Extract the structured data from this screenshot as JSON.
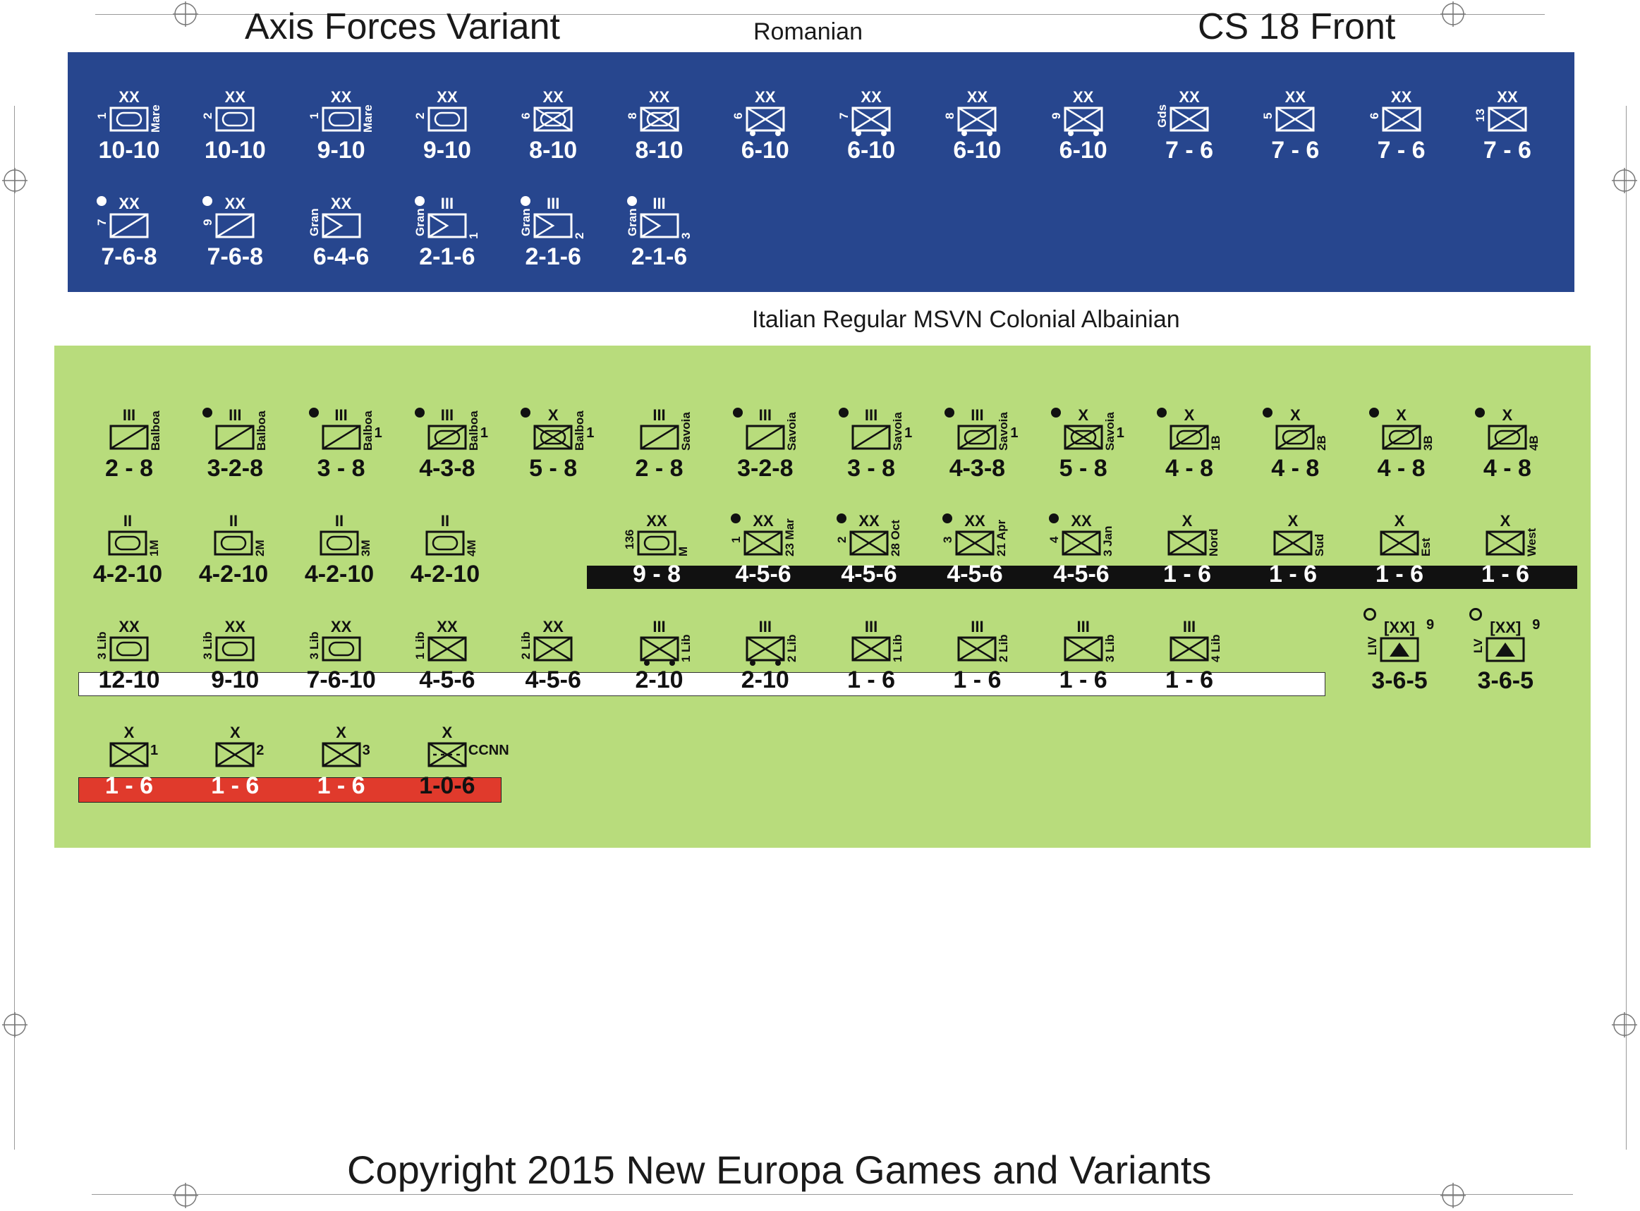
{
  "header": {
    "title_left": "Axis Forces Variant",
    "title_center": "Romanian",
    "title_right": "CS 18 Front"
  },
  "section2_title": "Italian Regular MSVN Colonial Albainian",
  "footer": "Copyright 2015 New Europa Games and Variants",
  "colors": {
    "romanian_panel": "#27468e",
    "italian_panel": "#b8dc7c",
    "black_strip": "#111111",
    "white_strip": "#ffffff",
    "red_strip": "#e03a2c"
  },
  "romanian": {
    "row1": [
      {
        "size": "XX",
        "type": "armor",
        "left": "1",
        "right": "Mare",
        "value": "10-10"
      },
      {
        "size": "XX",
        "type": "armor",
        "left": "2",
        "right": "",
        "value": "10-10"
      },
      {
        "size": "XX",
        "type": "armor",
        "left": "1",
        "right": "Mare",
        "value": "9-10"
      },
      {
        "size": "XX",
        "type": "armor",
        "left": "2",
        "right": "",
        "value": "9-10"
      },
      {
        "size": "XX",
        "type": "mech",
        "left": "6",
        "right": "",
        "value": "8-10"
      },
      {
        "size": "XX",
        "type": "mech",
        "left": "8",
        "right": "",
        "value": "8-10"
      },
      {
        "size": "XX",
        "type": "motinf",
        "left": "6",
        "right": "",
        "value": "6-10"
      },
      {
        "size": "XX",
        "type": "motinf",
        "left": "7",
        "right": "",
        "value": "6-10"
      },
      {
        "size": "XX",
        "type": "motinf",
        "left": "8",
        "right": "",
        "value": "6-10"
      },
      {
        "size": "XX",
        "type": "motinf",
        "left": "9",
        "right": "",
        "value": "6-10"
      },
      {
        "size": "XX",
        "type": "inf",
        "left": "Gds",
        "right": "",
        "value": "7 - 6"
      },
      {
        "size": "XX",
        "type": "inf",
        "left": "5",
        "right": "",
        "value": "7 - 6"
      },
      {
        "size": "XX",
        "type": "inf",
        "left": "6",
        "right": "",
        "value": "7 - 6"
      },
      {
        "size": "XX",
        "type": "inf",
        "left": "13",
        "right": "",
        "value": "7 - 6"
      }
    ],
    "row2": [
      {
        "size": "XX",
        "type": "cav",
        "left": "7",
        "right": "",
        "value": "7-6-8",
        "marker": "dot-white"
      },
      {
        "size": "XX",
        "type": "cav",
        "left": "9",
        "right": "",
        "value": "7-6-8",
        "marker": "dot-white"
      },
      {
        "size": "XX",
        "type": "mtn",
        "left": "Gran",
        "right": "",
        "value": "6-4-6"
      },
      {
        "size": "III",
        "type": "mtn",
        "left": "Gran",
        "right": "1",
        "value": "2-1-6",
        "marker": "dot-white"
      },
      {
        "size": "III",
        "type": "mtn",
        "left": "Gran",
        "right": "2",
        "value": "2-1-6",
        "marker": "dot-white"
      },
      {
        "size": "III",
        "type": "mtn",
        "left": "Gran",
        "right": "3",
        "value": "2-1-6",
        "marker": "dot-white"
      }
    ]
  },
  "italian": {
    "row1": [
      {
        "size": "III",
        "type": "cav",
        "right": "Balboa",
        "num": "",
        "value": "2 - 8"
      },
      {
        "size": "III",
        "type": "cav",
        "right": "Balboa",
        "num": "",
        "value": "3-2-8",
        "marker": "dot"
      },
      {
        "size": "III",
        "type": "cav",
        "right": "Balboa",
        "num": "1",
        "value": "3 - 8",
        "marker": "dot"
      },
      {
        "size": "III",
        "type": "armcav",
        "right": "Balboa",
        "num": "1",
        "value": "4-3-8",
        "marker": "dot"
      },
      {
        "size": "X",
        "type": "mech",
        "right": "Balboa",
        "num": "1",
        "value": "5 - 8",
        "marker": "dot"
      },
      {
        "size": "III",
        "type": "cav",
        "right": "Savoia",
        "num": "",
        "value": "2 - 8"
      },
      {
        "size": "III",
        "type": "cav",
        "right": "Savoia",
        "num": "",
        "value": "3-2-8",
        "marker": "dot"
      },
      {
        "size": "III",
        "type": "cav",
        "right": "Savoia",
        "num": "1",
        "value": "3 - 8",
        "marker": "dot"
      },
      {
        "size": "III",
        "type": "armcav",
        "right": "Savoia",
        "num": "1",
        "value": "4-3-8",
        "marker": "dot"
      },
      {
        "size": "X",
        "type": "mech",
        "right": "Savoia",
        "num": "1",
        "value": "5 - 8",
        "marker": "dot"
      },
      {
        "size": "X",
        "type": "armcav",
        "right": "1B",
        "num": "",
        "value": "4 - 8",
        "marker": "dot"
      },
      {
        "size": "X",
        "type": "armcav",
        "right": "2B",
        "num": "",
        "value": "4 - 8",
        "marker": "dot"
      },
      {
        "size": "X",
        "type": "armcav",
        "right": "3B",
        "num": "",
        "value": "4 - 8",
        "marker": "dot"
      },
      {
        "size": "X",
        "type": "armcav",
        "right": "4B",
        "num": "",
        "value": "4 - 8",
        "marker": "dot"
      }
    ],
    "row2": [
      {
        "size": "II",
        "type": "armor",
        "left": "",
        "right": "1M",
        "value": "4-2-10"
      },
      {
        "size": "II",
        "type": "armor",
        "left": "",
        "right": "2M",
        "value": "4-2-10"
      },
      {
        "size": "II",
        "type": "armor",
        "left": "",
        "right": "3M",
        "value": "4-2-10"
      },
      {
        "size": "II",
        "type": "armor",
        "left": "",
        "right": "4M",
        "value": "4-2-10"
      },
      {
        "size": "XX",
        "type": "armor",
        "left": "136",
        "right": "M",
        "value": "9 - 8"
      },
      {
        "size": "XX",
        "type": "inf",
        "left": "1",
        "right": "23 Mar",
        "value": "4-5-6",
        "marker": "dot"
      },
      {
        "size": "XX",
        "type": "inf",
        "left": "2",
        "right": "28 Oct",
        "value": "4-5-6",
        "marker": "dot"
      },
      {
        "size": "XX",
        "type": "inf",
        "left": "3",
        "right": "21 Apr",
        "value": "4-5-6",
        "marker": "dot"
      },
      {
        "size": "XX",
        "type": "inf",
        "left": "4",
        "right": "3 Jan",
        "value": "4-5-6",
        "marker": "dot"
      },
      {
        "size": "X",
        "type": "inf",
        "left": "",
        "right": "Nord",
        "value": "1 - 6"
      },
      {
        "size": "X",
        "type": "inf",
        "left": "",
        "right": "Sud",
        "value": "1 - 6"
      },
      {
        "size": "X",
        "type": "inf",
        "left": "",
        "right": "Est",
        "value": "1 - 6"
      },
      {
        "size": "X",
        "type": "inf",
        "left": "",
        "right": "West",
        "value": "1 - 6"
      }
    ],
    "row3": [
      {
        "size": "XX",
        "type": "armor",
        "left": "3 Lib",
        "right": "",
        "value": "12-10"
      },
      {
        "size": "XX",
        "type": "armor",
        "left": "3 Lib",
        "right": "",
        "value": "9-10"
      },
      {
        "size": "XX",
        "type": "armor",
        "left": "3 Lib",
        "right": "",
        "value": "7-6-10"
      },
      {
        "size": "XX",
        "type": "inf",
        "left": "1 Lib",
        "right": "",
        "value": "4-5-6"
      },
      {
        "size": "XX",
        "type": "inf",
        "left": "2 Lib",
        "right": "",
        "value": "4-5-6"
      },
      {
        "size": "III",
        "type": "motinf",
        "left": "",
        "right": "1 Lib",
        "value": "2-10"
      },
      {
        "size": "III",
        "type": "motinf",
        "left": "",
        "right": "2 Lib",
        "value": "2-10"
      },
      {
        "size": "III",
        "type": "inf",
        "left": "",
        "right": "1 Lib",
        "value": "1 - 6"
      },
      {
        "size": "III",
        "type": "inf",
        "left": "",
        "right": "2 Lib",
        "value": "1 - 6"
      },
      {
        "size": "III",
        "type": "inf",
        "left": "",
        "right": "3 Lib",
        "value": "1 - 6"
      },
      {
        "size": "III",
        "type": "inf",
        "left": "",
        "right": "4 Lib",
        "value": "1 - 6"
      }
    ],
    "row3_extra": [
      {
        "size": "[XX]",
        "type": "hq",
        "left": "LIV",
        "num": "9",
        "value": "3-6-5",
        "marker": "ring"
      },
      {
        "size": "[XX]",
        "type": "hq",
        "left": "LV",
        "num": "9",
        "value": "3-6-5",
        "marker": "ring"
      }
    ],
    "row4": [
      {
        "size": "X",
        "type": "inf",
        "num": "1",
        "value": "1 - 6"
      },
      {
        "size": "X",
        "type": "inf",
        "num": "2",
        "value": "1 - 6"
      },
      {
        "size": "X",
        "type": "inf",
        "num": "3",
        "value": "1 - 6"
      },
      {
        "size": "X",
        "type": "mginf",
        "num": "CCNN",
        "value": "1-0-6"
      }
    ]
  }
}
